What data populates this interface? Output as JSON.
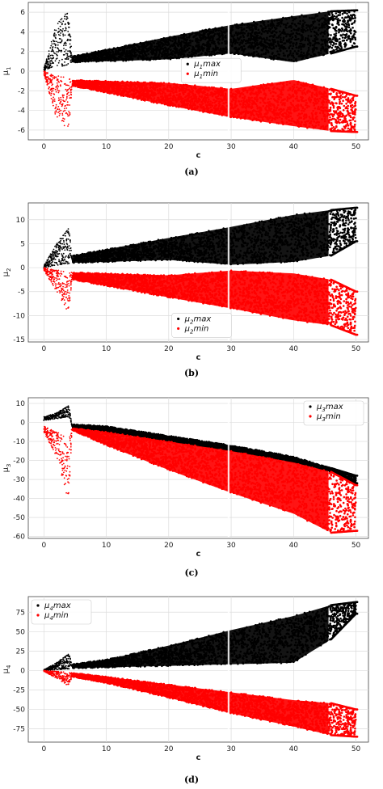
{
  "chart_data": [
    {
      "type": "scatter",
      "caption": "(a)",
      "xlabel": "c",
      "ylabel": "μ1",
      "xlim": [
        -2.5,
        52
      ],
      "ylim": [
        -7,
        7
      ],
      "xticks": [
        0,
        10,
        20,
        30,
        40,
        50
      ],
      "yticks": [
        -6,
        -4,
        -2,
        0,
        2,
        4,
        6
      ],
      "grid": true,
      "legend_position": "center-right",
      "series": [
        {
          "name": "μ1max",
          "color": "#000000",
          "envelope": {
            "x": [
              0,
              2,
              4,
              4.5,
              10,
              20,
              30,
              40,
              46,
              50
            ],
            "upper": [
              0.3,
              4.8,
              6.2,
              1.5,
              2.2,
              3.5,
              4.7,
              5.6,
              6.1,
              6.2
            ],
            "lower": [
              0,
              0.5,
              0.5,
              0.9,
              1.0,
              1.2,
              1.8,
              0.9,
              1.8,
              2.5
            ]
          }
        },
        {
          "name": "μ1min",
          "color": "#ff0000",
          "envelope": {
            "x": [
              0,
              2,
              4,
              4.5,
              10,
              20,
              30,
              40,
              46,
              50
            ],
            "upper": [
              0,
              -0.5,
              -0.5,
              -0.9,
              -1.0,
              -1.2,
              -1.8,
              -0.9,
              -1.8,
              -2.5
            ],
            "lower": [
              -0.3,
              -4.8,
              -6.2,
              -1.5,
              -2.2,
              -3.5,
              -4.7,
              -5.6,
              -6.1,
              -6.2
            ]
          }
        }
      ]
    },
    {
      "type": "scatter",
      "caption": "(b)",
      "xlabel": "c",
      "ylabel": "μ2",
      "xlim": [
        -2.5,
        52
      ],
      "ylim": [
        -15.5,
        13.5
      ],
      "xticks": [
        0,
        10,
        20,
        30,
        40,
        50
      ],
      "yticks": [
        -15,
        -10,
        -5,
        0,
        5,
        10
      ],
      "grid": true,
      "legend_position": "lower-center",
      "series": [
        {
          "name": "μ2max",
          "color": "#000000",
          "envelope": {
            "x": [
              0,
              2,
              4,
              4.5,
              10,
              20,
              30,
              40,
              46,
              50
            ],
            "upper": [
              0.5,
              5,
              8.5,
              2.5,
              3.8,
              6.2,
              8.5,
              11,
              12,
              12.5
            ],
            "lower": [
              0,
              0.5,
              0.8,
              1.0,
              1.2,
              1.6,
              0.6,
              1.2,
              2.5,
              5.5
            ]
          }
        },
        {
          "name": "μ2min",
          "color": "#ff0000",
          "envelope": {
            "x": [
              0,
              2,
              4,
              4.5,
              10,
              20,
              30,
              40,
              46,
              50
            ],
            "upper": [
              0,
              -0.5,
              -0.8,
              -1.0,
              -1.2,
              -1.6,
              -0.6,
              -1.2,
              -2.5,
              -5.0
            ],
            "lower": [
              -0.5,
              -5,
              -9.5,
              -2.5,
              -3.8,
              -6.2,
              -8.5,
              -11,
              -12,
              -14
            ]
          }
        }
      ]
    },
    {
      "type": "scatter",
      "caption": "(c)",
      "xlabel": "c",
      "ylabel": "μ3",
      "xlim": [
        -2.5,
        52
      ],
      "ylim": [
        -61,
        13
      ],
      "xticks": [
        0,
        10,
        20,
        30,
        40,
        50
      ],
      "yticks": [
        -60,
        -50,
        -40,
        -30,
        -20,
        -10,
        0,
        10
      ],
      "grid": true,
      "legend_position": "top-right",
      "series": [
        {
          "name": "μ3max",
          "color": "#000000",
          "envelope": {
            "x": [
              0,
              2,
              4,
              4.5,
              10,
              20,
              30,
              40,
              46,
              50
            ],
            "upper": [
              3,
              5,
              9,
              -1,
              -2,
              -7,
              -12,
              -18,
              -24,
              -28
            ],
            "lower": [
              1,
              2,
              3,
              -3,
              -5,
              -10,
              -15,
              -21,
              -26,
              -32
            ]
          }
        },
        {
          "name": "μ3min",
          "color": "#ff0000",
          "envelope": {
            "x": [
              0,
              2,
              4,
              4.5,
              10,
              20,
              30,
              40,
              46,
              50
            ],
            "upper": [
              -2,
              -5,
              -8,
              -3,
              -5,
              -10,
              -15,
              -21,
              -26,
              -33
            ],
            "lower": [
              -5,
              -18,
              -42,
              -4,
              -12,
              -25,
              -37,
              -48,
              -58,
              -57
            ]
          }
        }
      ]
    },
    {
      "type": "scatter",
      "caption": "(d)",
      "xlabel": "c",
      "ylabel": "μ4",
      "xlim": [
        -2.5,
        52
      ],
      "ylim": [
        -92,
        95
      ],
      "xticks": [
        0,
        10,
        20,
        30,
        40,
        50
      ],
      "yticks": [
        -75,
        -50,
        -25,
        0,
        25,
        50,
        75
      ],
      "grid": true,
      "legend_position": "top-left",
      "series": [
        {
          "name": "μ4max",
          "color": "#000000",
          "envelope": {
            "x": [
              0,
              2,
              4,
              4.5,
              10,
              20,
              30,
              40,
              46,
              50
            ],
            "upper": [
              1,
              10,
              22,
              8,
              14,
              32,
              52,
              70,
              84,
              88
            ],
            "lower": [
              0,
              1,
              2,
              3,
              4,
              6,
              8,
              10,
              40,
              73
            ]
          }
        },
        {
          "name": "μ4min",
          "color": "#ff0000",
          "envelope": {
            "x": [
              0,
              2,
              4,
              4.5,
              10,
              20,
              30,
              40,
              46,
              50
            ],
            "upper": [
              0,
              -1,
              -2,
              -3,
              -8,
              -18,
              -28,
              -38,
              -42,
              -50
            ],
            "lower": [
              -1,
              -10,
              -20,
              -8,
              -16,
              -35,
              -55,
              -72,
              -83,
              -85
            ]
          }
        }
      ]
    }
  ]
}
